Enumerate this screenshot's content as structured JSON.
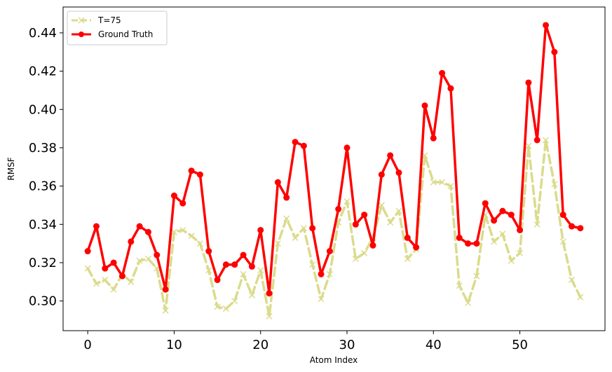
{
  "chart_data": {
    "type": "line",
    "xlabel": "Atom Index",
    "ylabel": "RMSF",
    "xlim": [
      -2.85,
      59.85
    ],
    "ylim": [
      0.2845,
      0.4535
    ],
    "xticks": [
      0,
      10,
      20,
      30,
      40,
      50
    ],
    "yticks": [
      0.3,
      0.32,
      0.34,
      0.36,
      0.38,
      0.4,
      0.42,
      0.44
    ],
    "ytick_labels": [
      "0.30",
      "0.32",
      "0.34",
      "0.36",
      "0.38",
      "0.40",
      "0.42",
      "0.44"
    ],
    "grid": false,
    "legend_position": "upper left",
    "series": [
      {
        "name": "T=75",
        "color": "#dbdb8d",
        "style": "dashed",
        "marker": "x",
        "values": [
          0.317,
          0.309,
          0.311,
          0.306,
          0.314,
          0.31,
          0.321,
          0.322,
          0.317,
          0.295,
          0.336,
          0.337,
          0.334,
          0.33,
          0.316,
          0.297,
          0.296,
          0.3,
          0.314,
          0.303,
          0.316,
          0.292,
          0.33,
          0.343,
          0.333,
          0.338,
          0.319,
          0.301,
          0.314,
          0.341,
          0.352,
          0.322,
          0.325,
          0.333,
          0.35,
          0.341,
          0.347,
          0.322,
          0.327,
          0.376,
          0.362,
          0.362,
          0.36,
          0.308,
          0.299,
          0.313,
          0.345,
          0.331,
          0.335,
          0.321,
          0.325,
          0.381,
          0.34,
          0.384,
          0.361,
          0.331,
          0.311,
          0.302
        ]
      },
      {
        "name": "Ground Truth",
        "color": "#ff0000",
        "style": "solid",
        "marker": "o",
        "values": [
          0.326,
          0.339,
          0.317,
          0.32,
          0.313,
          0.331,
          0.339,
          0.336,
          0.324,
          0.306,
          0.355,
          0.351,
          0.368,
          0.366,
          0.326,
          0.311,
          0.319,
          0.319,
          0.324,
          0.318,
          0.337,
          0.304,
          0.362,
          0.354,
          0.383,
          0.381,
          0.338,
          0.314,
          0.326,
          0.348,
          0.38,
          0.34,
          0.345,
          0.329,
          0.366,
          0.376,
          0.367,
          0.333,
          0.328,
          0.402,
          0.385,
          0.419,
          0.411,
          0.333,
          0.33,
          0.33,
          0.351,
          0.342,
          0.347,
          0.345,
          0.337,
          0.414,
          0.384,
          0.444,
          0.43,
          0.345,
          0.339,
          0.338
        ]
      }
    ]
  }
}
